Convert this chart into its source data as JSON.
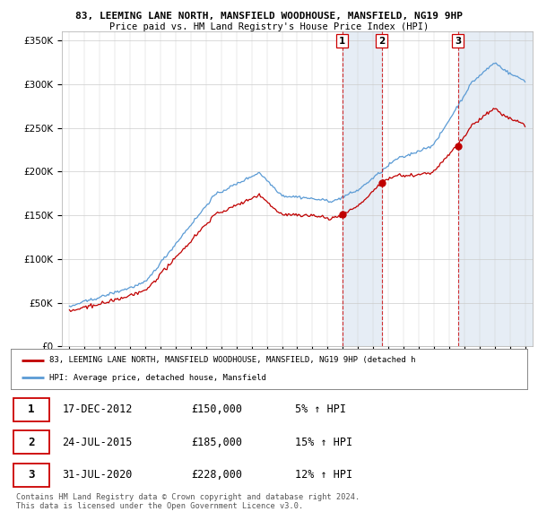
{
  "title": "83, LEEMING LANE NORTH, MANSFIELD WOODHOUSE, MANSFIELD, NG19 9HP",
  "subtitle": "Price paid vs. HM Land Registry's House Price Index (HPI)",
  "ylim": [
    0,
    360000
  ],
  "yticks": [
    0,
    50000,
    100000,
    150000,
    200000,
    250000,
    300000,
    350000
  ],
  "ytick_labels": [
    "£0",
    "£50K",
    "£100K",
    "£150K",
    "£200K",
    "£250K",
    "£300K",
    "£350K"
  ],
  "hpi_color": "#5b9bd5",
  "price_color": "#c00000",
  "vline_color": "#cc0000",
  "shade_color": "#dce6f1",
  "transactions": [
    {
      "label": "1",
      "date_num": 2012.96,
      "price": 150000
    },
    {
      "label": "2",
      "date_num": 2015.56,
      "price": 185000
    },
    {
      "label": "3",
      "date_num": 2020.58,
      "price": 228000
    }
  ],
  "legend_price_label": "83, LEEMING LANE NORTH, MANSFIELD WOODHOUSE, MANSFIELD, NG19 9HP (detached h",
  "legend_hpi_label": "HPI: Average price, detached house, Mansfield",
  "table_rows": [
    [
      "1",
      "17-DEC-2012",
      "£150,000",
      "5% ↑ HPI"
    ],
    [
      "2",
      "24-JUL-2015",
      "£185,000",
      "15% ↑ HPI"
    ],
    [
      "3",
      "31-JUL-2020",
      "£228,000",
      "12% ↑ HPI"
    ]
  ],
  "footer": "Contains HM Land Registry data © Crown copyright and database right 2024.\nThis data is licensed under the Open Government Licence v3.0.",
  "background_color": "#ffffff",
  "plot_bg_color": "#ffffff",
  "grid_color": "#cccccc",
  "xstart": 1995,
  "xend": 2025
}
